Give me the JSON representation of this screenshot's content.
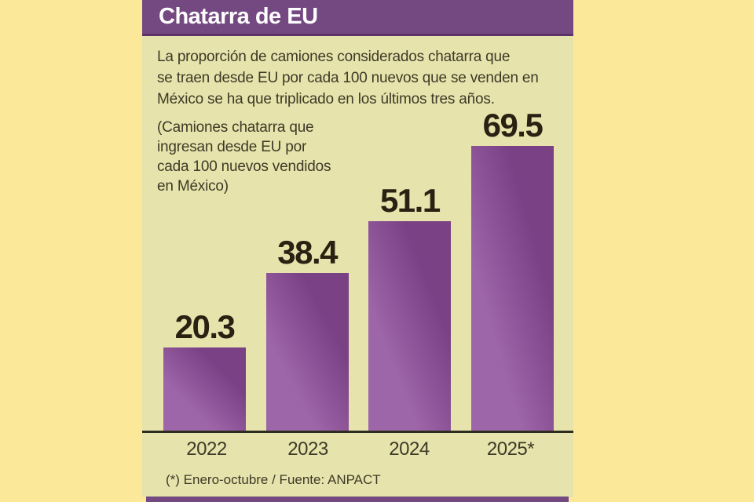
{
  "header": {
    "title": "Chatarra de EU"
  },
  "intro_lines": [
    "La proporción de camiones considerados chatarra que",
    "se traen desde EU por cada 100 nuevos que se venden en",
    "México se ha que triplicado en los últimos tres años."
  ],
  "subtitle_lines": [
    "(Camiones chatarra que",
    "ingresan desde EU por",
    "cada 100 nuevos vendidos",
    "en México)"
  ],
  "footnote": "(*) Enero-octubre / Fuente: ANPACT",
  "chart_data": {
    "type": "bar",
    "title": "Chatarra de EU",
    "subtitle": "(Camiones chatarra que ingresan desde EU por cada 100 nuevos vendidos en México)",
    "categories": [
      "2022",
      "2023",
      "2024",
      "2025*"
    ],
    "values": [
      20.3,
      38.4,
      51.1,
      69.5
    ],
    "value_label_format": "one-decimal",
    "xlabel": "",
    "ylabel": "",
    "ylim": [
      0,
      70
    ],
    "grid": false,
    "legend": false,
    "note": "(*) Enero-octubre",
    "source": "Fuente: ANPACT"
  },
  "colors": {
    "page_bg": "#fbe999",
    "panel_bg": "#e7e3ac",
    "header_bg": "#744982",
    "header_border": "#5c3468",
    "header_text": "#ffffff",
    "bar_light": "#9d66a8",
    "bar_dark": "#7a4185",
    "value_text": "#2a2113",
    "body_text": "#3e3a27",
    "axis_line": "#2e2b1f"
  }
}
